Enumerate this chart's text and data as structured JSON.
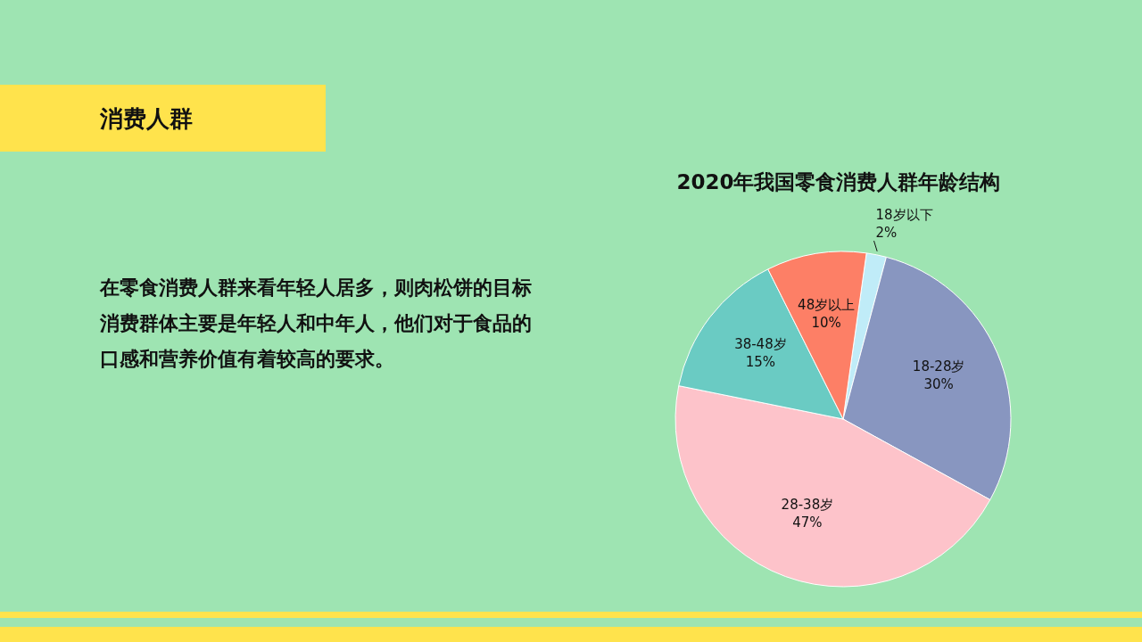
{
  "chart_data": {
    "type": "pie",
    "title": "2020年我国零食消费人群年龄结构",
    "categories": [
      "18岁以下",
      "18-28岁",
      "28-38岁",
      "38-48岁",
      "48岁以上"
    ],
    "values": [
      2,
      30,
      47,
      15,
      10
    ],
    "value_labels": [
      "2%",
      "30%",
      "47%",
      "15%",
      "10%"
    ],
    "colors": [
      "#c0ecf8",
      "#8896c0",
      "#fdc3ca",
      "#6acbc3",
      "#fd7f66"
    ],
    "annotations": [
      "消费人群",
      "在零食消费人群来看年轻人居多，则肉松饼的目标消费群体主要是年轻人和中年人，他们对于食品的口感和营养价值有着较高的要求。"
    ]
  }
}
